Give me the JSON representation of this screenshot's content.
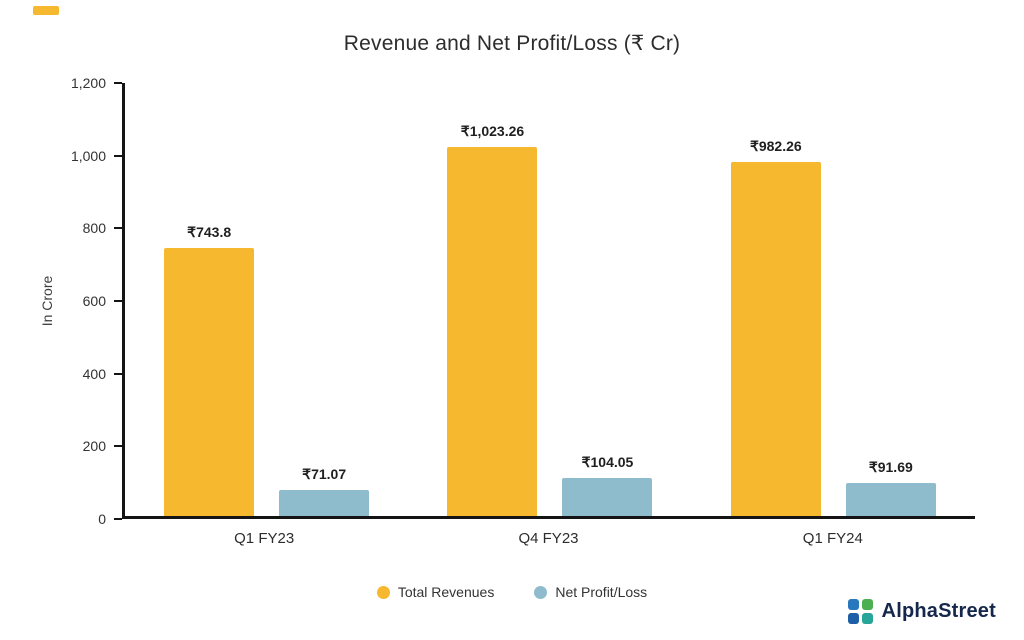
{
  "title": "Revenue and Net Profit/Loss (₹ Cr)",
  "chart_data": {
    "type": "bar",
    "title": "Revenue and Net Profit/Loss (₹ Cr)",
    "xlabel": "",
    "ylabel": "In Crore",
    "categories": [
      "Q1 FY23",
      "Q4 FY23",
      "Q1 FY24"
    ],
    "series": [
      {
        "name": "Total Revenues",
        "color": "#F5B82E",
        "values": [
          743.8,
          1023.26,
          982.26
        ],
        "labels": [
          "₹743.8",
          "₹1,023.26",
          "₹982.26"
        ]
      },
      {
        "name": "Net Profit/Loss",
        "color": "#8FBCCD",
        "values": [
          71.07,
          104.05,
          91.69
        ],
        "labels": [
          "₹71.07",
          "₹104.05",
          "₹91.69"
        ]
      }
    ],
    "ylim": [
      0,
      1200
    ],
    "ytick_step": 200,
    "yticks": [
      "0",
      "200",
      "400",
      "600",
      "800",
      "1,000",
      "1,200"
    ],
    "grid": false,
    "legend_position": "bottom"
  },
  "legend": {
    "items": [
      {
        "label": "Total Revenues",
        "color": "#F5B82E",
        "icon": "filled-circle"
      },
      {
        "label": "Net Profit/Loss",
        "color": "#8FBCCD",
        "icon": "filled-circle"
      }
    ]
  },
  "branding": {
    "name": "AlphaStreet",
    "icon": "alphastreet-flower-icon",
    "colors": {
      "tl": "#2878BE",
      "tr": "#4CAF50",
      "bl": "#1E5FA8",
      "br": "#27A599",
      "text": "#15284b"
    }
  },
  "decorations": {
    "corner_mark_color": "#F5B82E"
  }
}
